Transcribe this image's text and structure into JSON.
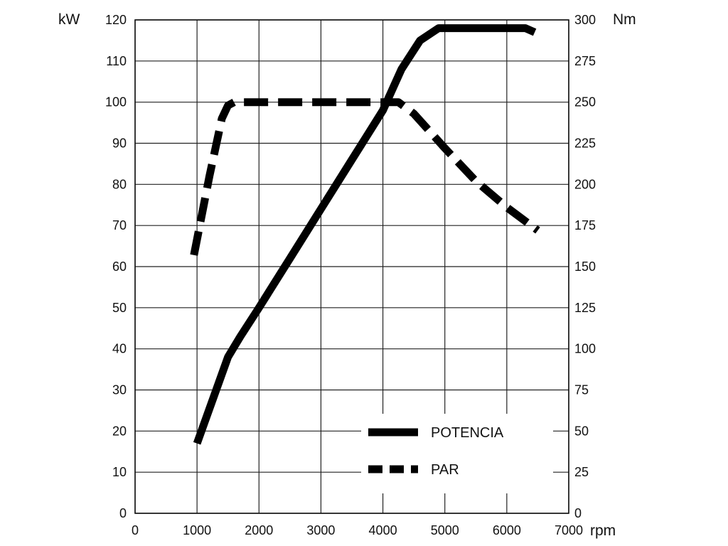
{
  "chart_data": {
    "type": "line",
    "xlabel": "rpm",
    "ylabel_left": "kW",
    "ylabel_right": "Nm",
    "xlim": [
      0,
      7000
    ],
    "ylim_left": [
      0,
      120
    ],
    "ylim_right": [
      0,
      300
    ],
    "x_ticks": [
      "0",
      "1000",
      "2000",
      "3000",
      "4000",
      "5000",
      "6000",
      "7000"
    ],
    "y_left_ticks": [
      "0",
      "10",
      "20",
      "30",
      "40",
      "50",
      "60",
      "70",
      "80",
      "90",
      "100",
      "110",
      "120"
    ],
    "y_right_ticks": [
      "0",
      "25",
      "50",
      "75",
      "100",
      "125",
      "150",
      "175",
      "200",
      "225",
      "250",
      "275",
      "300"
    ],
    "grid": true,
    "legend_position": "bottom-right",
    "series": [
      {
        "name": "POTENCIA",
        "axis": "left",
        "style": "solid",
        "color": "#000000",
        "x": [
          1000,
          1500,
          1700,
          2000,
          2500,
          3000,
          3500,
          4000,
          4300,
          4600,
          4900,
          5000,
          6000,
          6300,
          6450
        ],
        "y": [
          17,
          38,
          43,
          50,
          62,
          74,
          86,
          98,
          108,
          115,
          118,
          118,
          118,
          118,
          117
        ]
      },
      {
        "name": "PAR",
        "axis": "right",
        "style": "dashed",
        "color": "#000000",
        "x": [
          950,
          1200,
          1400,
          1500,
          1600,
          2000,
          3000,
          4000,
          4250,
          4500,
          5000,
          5500,
          6000,
          6500
        ],
        "y": [
          157,
          205,
          240,
          248,
          250,
          250,
          250,
          250,
          250,
          243,
          222,
          202,
          186,
          172
        ]
      }
    ]
  }
}
